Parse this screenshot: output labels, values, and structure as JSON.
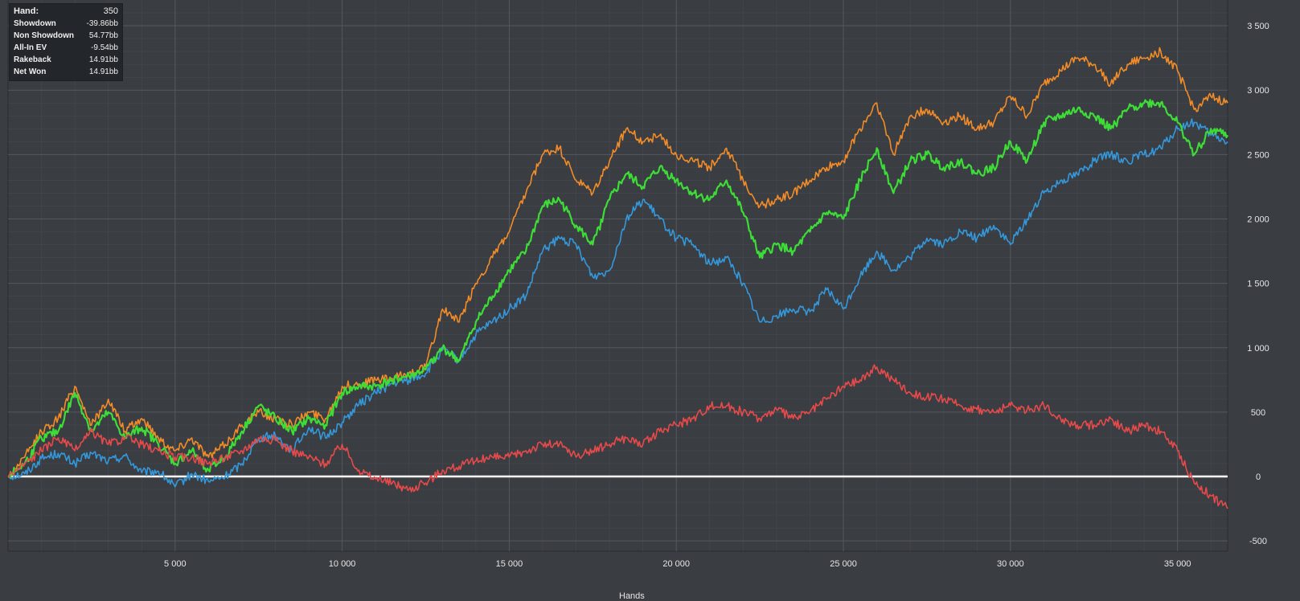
{
  "stats": {
    "hand_label": "Hand:",
    "hand_value": "350",
    "rows": [
      {
        "label": "Showdown",
        "value": "-39.86bb"
      },
      {
        "label": "Non Showdown",
        "value": "54.77bb"
      },
      {
        "label": "All-In EV",
        "value": "-9.54bb"
      },
      {
        "label": "Rakeback",
        "value": "14.91bb"
      },
      {
        "label": "Net Won",
        "value": "14.91bb"
      }
    ]
  },
  "chart_data": {
    "type": "line",
    "title": "",
    "xlabel": "Hands",
    "ylabel": "",
    "xlim": [
      0,
      36500
    ],
    "ylim": [
      -580,
      3700
    ],
    "xticks": [
      5000,
      10000,
      15000,
      20000,
      25000,
      30000,
      35000
    ],
    "xtick_labels": [
      "5 000",
      "10 000",
      "15 000",
      "20 000",
      "25 000",
      "30 000",
      "35 000"
    ],
    "yticks": [
      -500,
      0,
      500,
      1000,
      1500,
      2000,
      2500,
      3000,
      3500
    ],
    "ytick_labels": [
      "-500",
      "0",
      "500",
      "1 000",
      "1 500",
      "2 000",
      "2 500",
      "3 000",
      "3 500"
    ],
    "grid": true,
    "legend": "none",
    "zero_line_color": "#ffffff",
    "background": "#3a3d42",
    "series": [
      {
        "color": "#3498db",
        "x": [
          0,
          500,
          1000,
          1500,
          2000,
          2500,
          3000,
          3500,
          4000,
          4500,
          5000,
          5500,
          6000,
          6500,
          7000,
          7500,
          8000,
          8500,
          9000,
          9500,
          10000,
          10500,
          11000,
          11500,
          12000,
          12500,
          13000,
          13500,
          14000,
          14500,
          15000,
          15500,
          16000,
          16500,
          17000,
          17500,
          18000,
          18500,
          19000,
          19500,
          20000,
          20500,
          21000,
          21500,
          22000,
          22500,
          23000,
          23500,
          24000,
          24500,
          25000,
          25500,
          26000,
          26500,
          27000,
          27500,
          28000,
          28500,
          29000,
          29500,
          30000,
          30500,
          31000,
          31500,
          32000,
          32500,
          33000,
          33500,
          34000,
          34500,
          35000,
          35500,
          36000,
          36500
        ],
        "y": [
          0,
          20,
          140,
          180,
          100,
          180,
          120,
          160,
          30,
          40,
          -80,
          20,
          -40,
          0,
          100,
          300,
          320,
          200,
          380,
          300,
          420,
          560,
          650,
          720,
          750,
          800,
          980,
          900,
          1100,
          1200,
          1300,
          1400,
          1750,
          1850,
          1800,
          1550,
          1600,
          2000,
          2150,
          2000,
          1850,
          1800,
          1650,
          1700,
          1500,
          1200,
          1250,
          1300,
          1280,
          1450,
          1300,
          1550,
          1750,
          1600,
          1700,
          1850,
          1800,
          1900,
          1850,
          1950,
          1800,
          2000,
          2200,
          2300,
          2350,
          2450,
          2500,
          2450,
          2500,
          2550,
          2700,
          2750,
          2650,
          2600
        ]
      },
      {
        "color": "#f28c28",
        "x": [
          0,
          500,
          1000,
          1500,
          2000,
          2500,
          3000,
          3500,
          4000,
          4500,
          5000,
          5500,
          6000,
          6500,
          7000,
          7500,
          8000,
          8500,
          9000,
          9500,
          10000,
          10500,
          11000,
          11500,
          12000,
          12500,
          13000,
          13500,
          14000,
          14500,
          15000,
          15500,
          16000,
          16500,
          17000,
          17500,
          18000,
          18500,
          19000,
          19500,
          20000,
          20500,
          21000,
          21500,
          22000,
          22500,
          23000,
          23500,
          24000,
          24500,
          25000,
          25500,
          26000,
          26500,
          27000,
          27500,
          28000,
          28500,
          29000,
          29500,
          30000,
          30500,
          31000,
          31500,
          32000,
          32500,
          33000,
          33500,
          34000,
          34500,
          35000,
          35500,
          36000,
          36500
        ],
        "y": [
          0,
          150,
          350,
          450,
          700,
          400,
          600,
          350,
          450,
          300,
          200,
          300,
          150,
          250,
          400,
          500,
          450,
          400,
          500,
          450,
          700,
          720,
          750,
          760,
          800,
          850,
          1300,
          1200,
          1500,
          1700,
          1900,
          2200,
          2500,
          2550,
          2300,
          2200,
          2450,
          2700,
          2600,
          2650,
          2500,
          2450,
          2400,
          2550,
          2300,
          2100,
          2150,
          2200,
          2300,
          2400,
          2450,
          2700,
          2900,
          2500,
          2800,
          2850,
          2750,
          2800,
          2700,
          2750,
          2950,
          2800,
          3050,
          3150,
          3250,
          3200,
          3050,
          3200,
          3250,
          3300,
          3150,
          2850,
          2950,
          2900
        ]
      },
      {
        "color": "#3ddc37",
        "x": [
          0,
          500,
          1000,
          1500,
          2000,
          2500,
          3000,
          3500,
          4000,
          4500,
          5000,
          5500,
          6000,
          6500,
          7000,
          7500,
          8000,
          8500,
          9000,
          9500,
          10000,
          10500,
          11000,
          11500,
          12000,
          12500,
          13000,
          13500,
          14000,
          14500,
          15000,
          15500,
          16000,
          16500,
          17000,
          17500,
          18000,
          18500,
          19000,
          19500,
          20000,
          20500,
          21000,
          21500,
          22000,
          22500,
          23000,
          23500,
          24000,
          24500,
          25000,
          25500,
          26000,
          26500,
          27000,
          27500,
          28000,
          28500,
          29000,
          29500,
          30000,
          30500,
          31000,
          31500,
          32000,
          32500,
          33000,
          33500,
          34000,
          34500,
          35000,
          35500,
          36000,
          36500
        ],
        "y": [
          0,
          100,
          300,
          350,
          650,
          350,
          500,
          300,
          380,
          250,
          100,
          200,
          50,
          150,
          350,
          550,
          450,
          350,
          450,
          400,
          650,
          700,
          700,
          750,
          780,
          830,
          1000,
          900,
          1200,
          1400,
          1600,
          1750,
          2100,
          2150,
          1950,
          1800,
          2150,
          2350,
          2250,
          2400,
          2300,
          2200,
          2150,
          2300,
          2050,
          1700,
          1800,
          1750,
          1900,
          2050,
          2000,
          2300,
          2550,
          2200,
          2450,
          2500,
          2400,
          2450,
          2350,
          2400,
          2600,
          2450,
          2750,
          2800,
          2850,
          2800,
          2700,
          2850,
          2900,
          2900,
          2750,
          2500,
          2700,
          2650
        ]
      },
      {
        "color": "#e64a4a",
        "x": [
          0,
          500,
          1000,
          1500,
          2000,
          2500,
          3000,
          3500,
          4000,
          4500,
          5000,
          5500,
          6000,
          6500,
          7000,
          7500,
          8000,
          8500,
          9000,
          9500,
          10000,
          10500,
          11000,
          11500,
          12000,
          12500,
          13000,
          13500,
          14000,
          14500,
          15000,
          15500,
          16000,
          16500,
          17000,
          17500,
          18000,
          18500,
          19000,
          19500,
          20000,
          20500,
          21000,
          21500,
          22000,
          22500,
          23000,
          23500,
          24000,
          24500,
          25000,
          25500,
          26000,
          26500,
          27000,
          27500,
          28000,
          28500,
          29000,
          29500,
          30000,
          30500,
          31000,
          31500,
          32000,
          32500,
          33000,
          33500,
          34000,
          34500,
          35000,
          35500,
          36000,
          36500
        ],
        "y": [
          0,
          100,
          200,
          300,
          200,
          350,
          250,
          300,
          250,
          200,
          150,
          150,
          100,
          150,
          200,
          300,
          280,
          200,
          150,
          100,
          250,
          50,
          -20,
          -50,
          -100,
          -50,
          50,
          80,
          120,
          150,
          150,
          200,
          250,
          250,
          150,
          200,
          250,
          300,
          250,
          350,
          400,
          450,
          550,
          550,
          500,
          450,
          520,
          450,
          500,
          600,
          700,
          750,
          850,
          750,
          650,
          620,
          600,
          550,
          520,
          500,
          550,
          520,
          550,
          450,
          400,
          400,
          450,
          350,
          400,
          350,
          200,
          -50,
          -150,
          -250
        ]
      }
    ]
  }
}
